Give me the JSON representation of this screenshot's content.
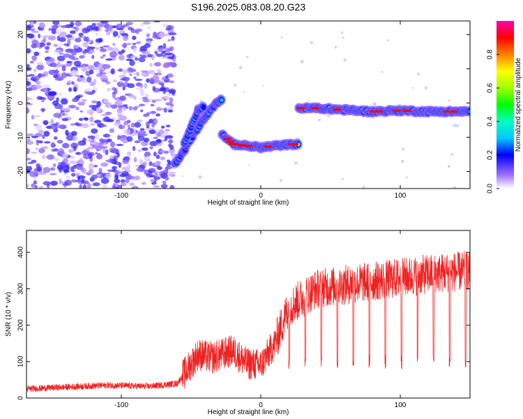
{
  "title": "S196.2025.083.08.20.G23",
  "charts": [
    {
      "type": "heatmap",
      "xlabel": "Height of straight line (km)",
      "ylabel": "Frequency (Hz)",
      "xlim": [
        -168,
        150
      ],
      "ylim": [
        -25,
        24
      ],
      "x_ticks": [
        -100,
        0,
        100
      ],
      "y_ticks": [
        -20,
        -10,
        0,
        10,
        20
      ],
      "colorbar": {
        "label": "Normalized spectral amplitude",
        "range": [
          0.0,
          1.0
        ],
        "ticks": [
          0.0,
          0.2,
          0.4,
          0.6,
          0.8
        ]
      },
      "features": [
        {
          "name": "noise region",
          "x_range": [
            -168,
            -62
          ],
          "level": 0.08
        },
        {
          "name": "rising track",
          "points": [
            [
              -62,
              -18
            ],
            [
              -55,
              -14
            ],
            [
              -48,
              -9
            ],
            [
              -40,
              -4
            ],
            [
              -32,
              0
            ],
            [
              -28,
              1
            ]
          ],
          "level": 0.25
        },
        {
          "name": "secondary track",
          "points": [
            [
              -55,
              -12
            ],
            [
              -50,
              -7
            ],
            [
              -45,
              -2
            ],
            [
              -41,
              -1
            ]
          ],
          "level": 0.2
        },
        {
          "name": "flat segment",
          "points": [
            [
              -28,
              -9
            ],
            [
              -20,
              -12
            ],
            [
              -10,
              -12.5
            ],
            [
              0,
              -13
            ],
            [
              10,
              -12.5
            ],
            [
              27,
              -12
            ]
          ],
          "level": 0.45
        },
        {
          "name": "upper segment",
          "points": [
            [
              27,
              -1.5
            ],
            [
              40,
              -1.5
            ],
            [
              60,
              -2
            ],
            [
              80,
              -2.5
            ],
            [
              100,
              -2.2
            ],
            [
              120,
              -2.5
            ],
            [
              150,
              -2.5
            ]
          ],
          "level": 0.55
        }
      ]
    },
    {
      "type": "line",
      "xlabel": "Height of straight line (km)",
      "ylabel": "SNR (10 * v/v)",
      "xlim": [
        -168,
        150
      ],
      "ylim": [
        0,
        460
      ],
      "x_ticks": [
        -100,
        0,
        100
      ],
      "y_ticks": [
        0,
        100,
        200,
        300,
        400
      ],
      "color": "#ee2222",
      "series": [
        {
          "name": "SNR",
          "x": [
            -168,
            -140,
            -110,
            -80,
            -60,
            -45,
            -35,
            -20,
            -10,
            0,
            10,
            20,
            40,
            60,
            80,
            100,
            120,
            150
          ],
          "y": [
            25,
            30,
            35,
            32,
            40,
            120,
            110,
            130,
            95,
            90,
            150,
            250,
            300,
            310,
            320,
            330,
            340,
            350
          ]
        }
      ]
    }
  ]
}
